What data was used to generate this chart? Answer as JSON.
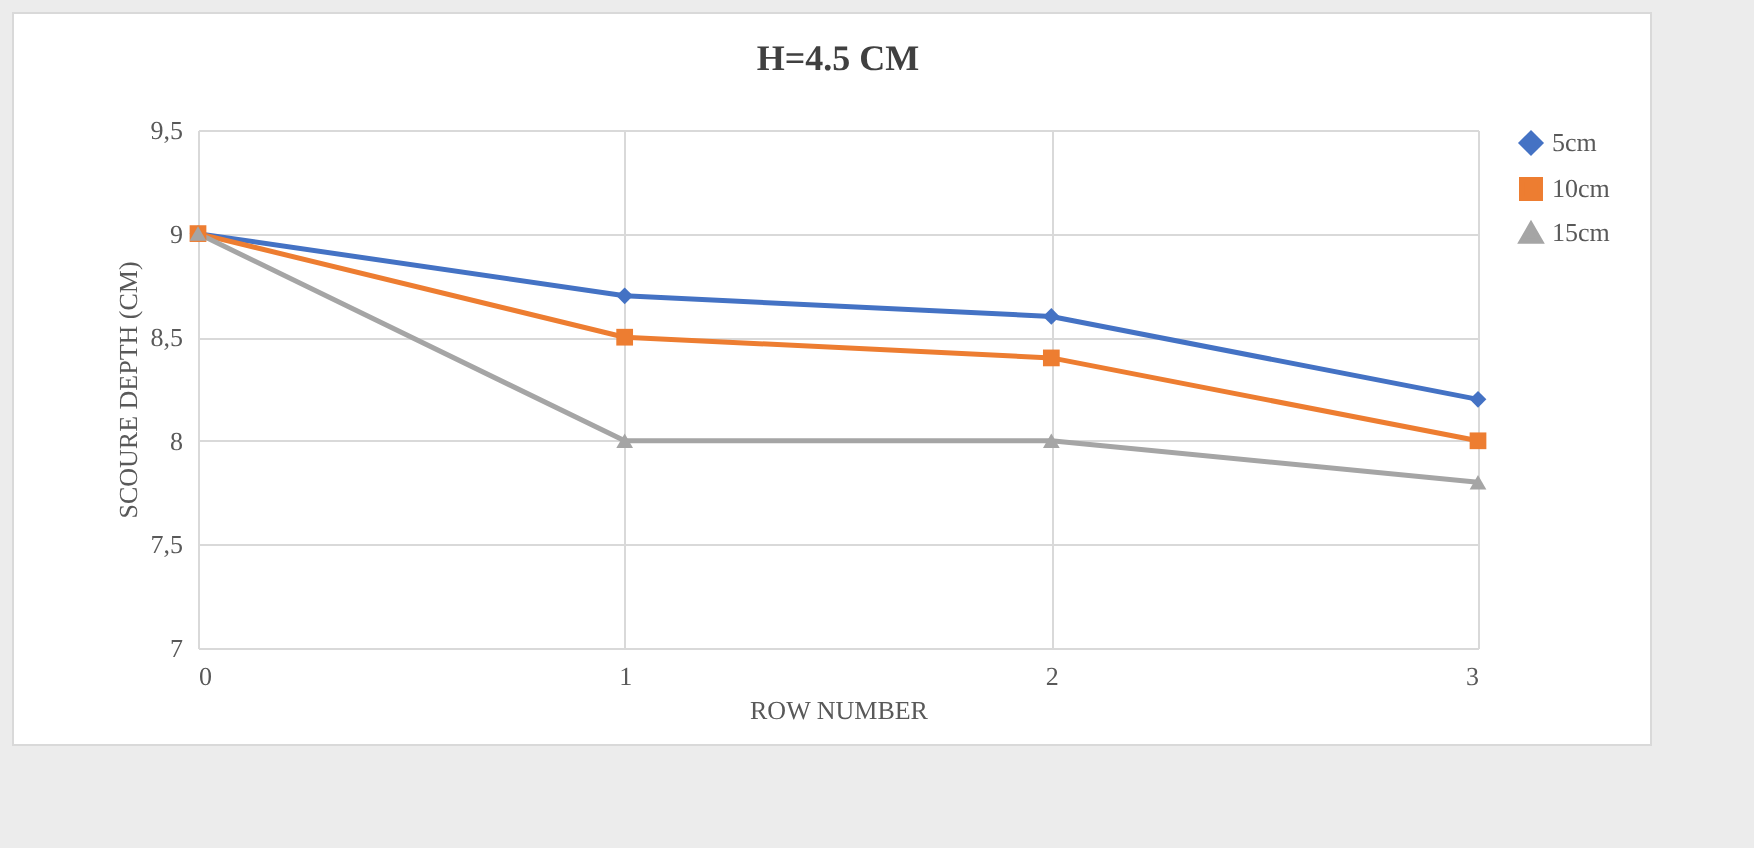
{
  "chart_data": {
    "type": "line",
    "title": "H=4.5 CM",
    "xlabel": "ROW NUMBER",
    "ylabel": "SCOURE  DEPTH  (CM)",
    "x": [
      0,
      1,
      2,
      3
    ],
    "series": [
      {
        "name": "5cm",
        "color": "#4472c4",
        "marker": "diamond",
        "values": [
          9,
          8.7,
          8.6,
          8.2
        ]
      },
      {
        "name": "10cm",
        "color": "#ed7d31",
        "marker": "square",
        "values": [
          9,
          8.5,
          8.4,
          8.0
        ]
      },
      {
        "name": "15cm",
        "color": "#a5a5a5",
        "marker": "triangle",
        "values": [
          9,
          8.0,
          8.0,
          7.8
        ]
      }
    ],
    "xlim": [
      0,
      3
    ],
    "xticks": [
      0,
      1,
      2,
      3
    ],
    "ylim": [
      7,
      9.5
    ],
    "yticks": [
      7,
      {
        "value": 7.5,
        "label": "7,5"
      },
      8,
      {
        "value": 8.5,
        "label": "8,5"
      },
      9,
      {
        "value": 9.5,
        "label": "9,5"
      }
    ],
    "grid": true,
    "legend": "right"
  }
}
